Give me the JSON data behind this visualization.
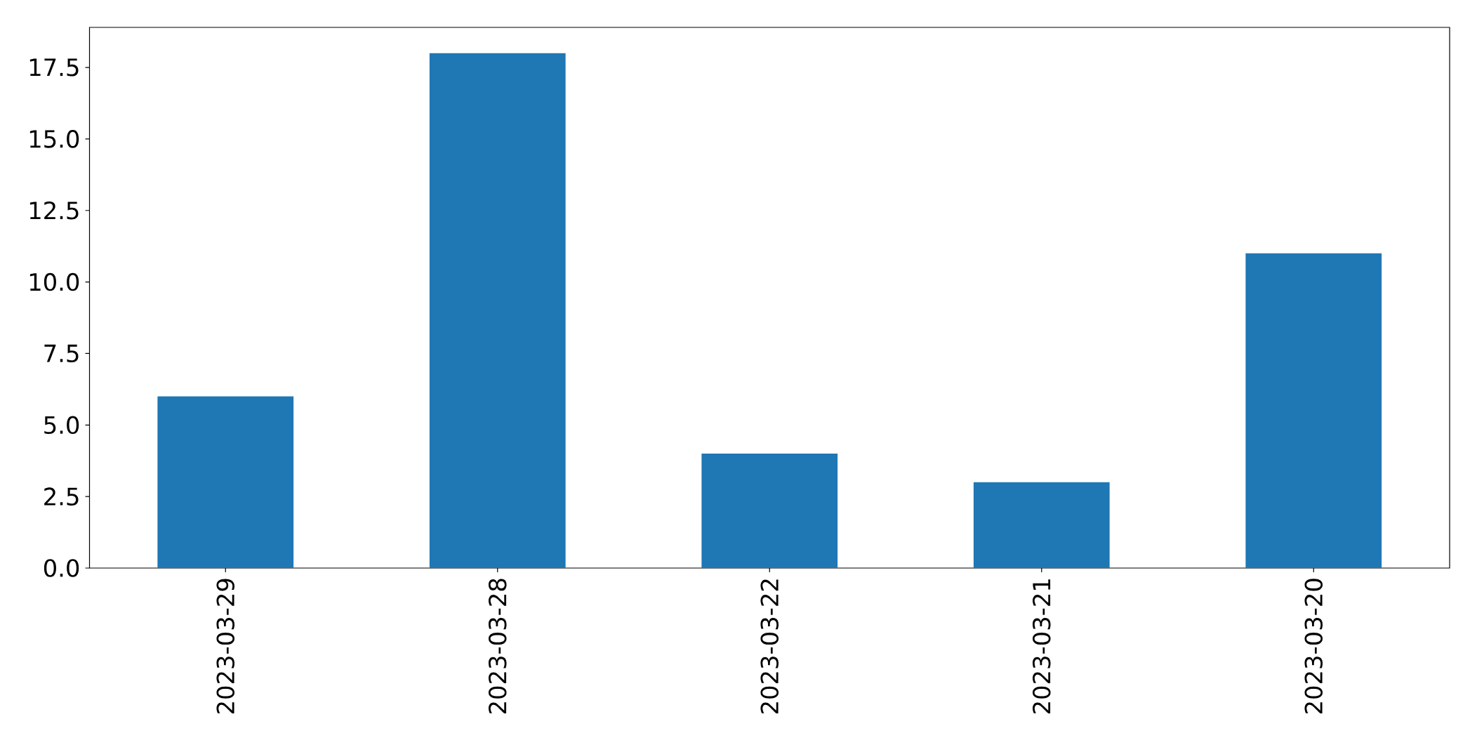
{
  "chart_data": {
    "type": "bar",
    "categories": [
      "2023-03-29",
      "2023-03-28",
      "2023-03-22",
      "2023-03-21",
      "2023-03-20"
    ],
    "values": [
      6,
      18,
      4,
      3,
      11
    ],
    "color": "#1f77b4",
    "ylim": [
      0,
      18.9
    ],
    "yticks": [
      {
        "value": 0,
        "label": "0.0"
      },
      2.5,
      {
        "value": 5,
        "label": "5.0"
      },
      7.5,
      {
        "value": 10,
        "label": "10.0"
      },
      12.5,
      {
        "value": 15,
        "label": "15.0"
      },
      17.5
    ]
  }
}
